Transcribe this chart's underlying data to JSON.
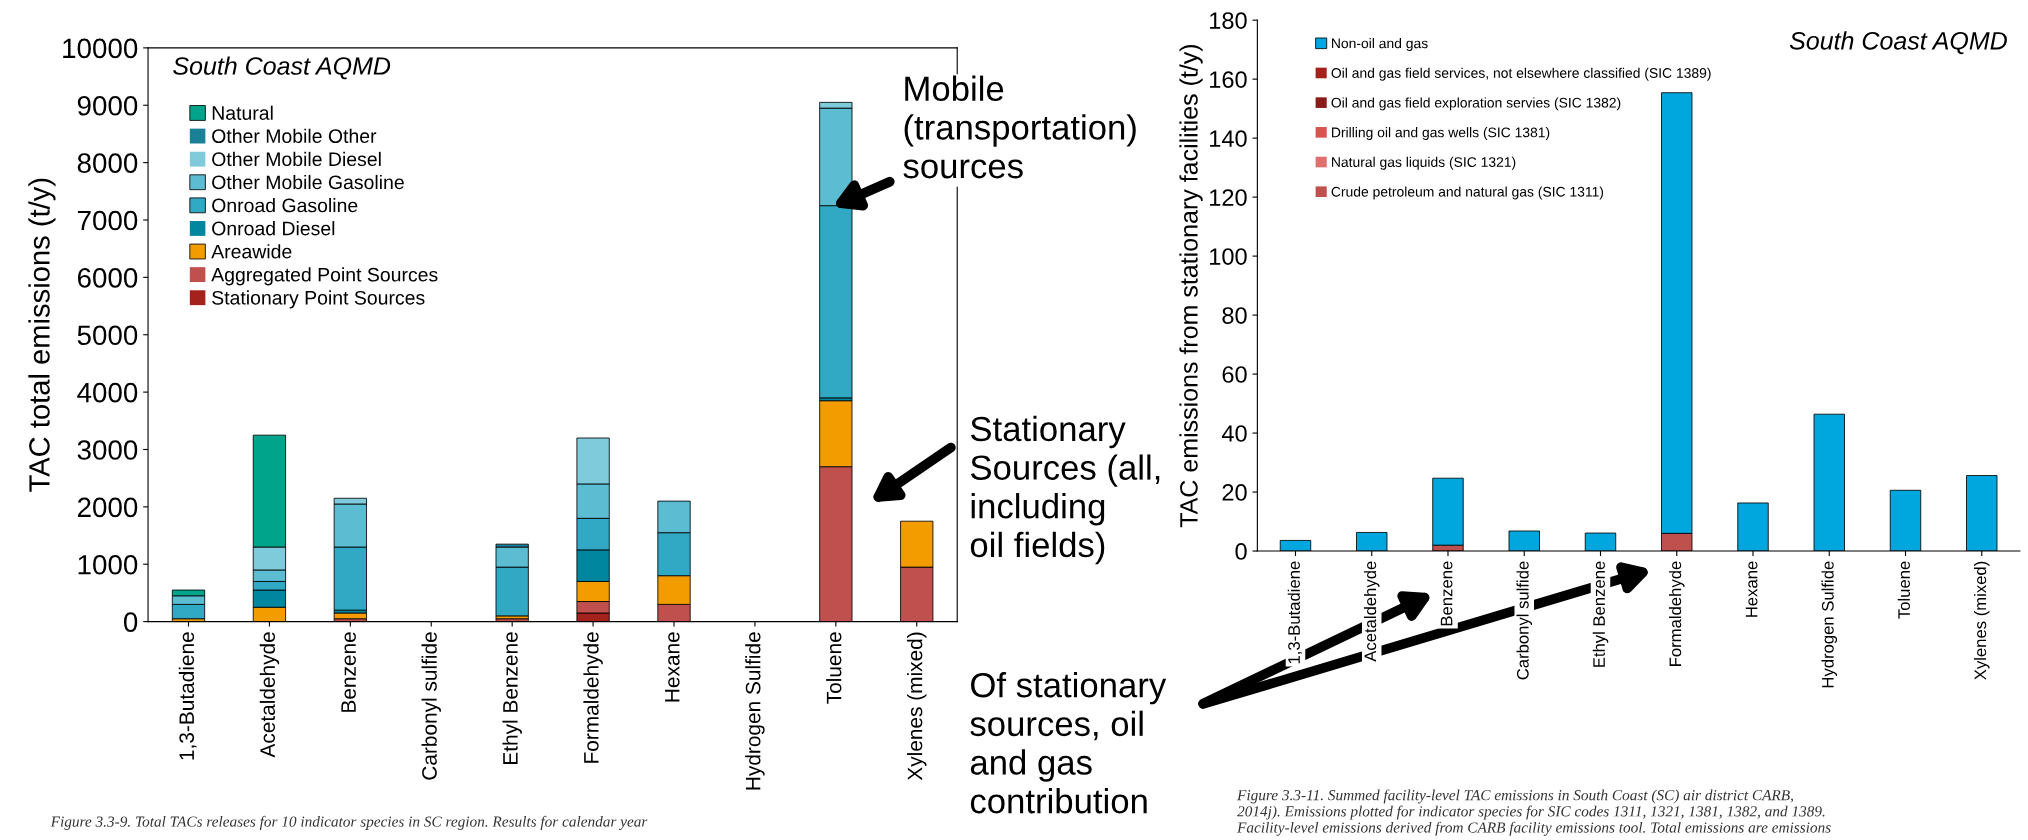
{
  "chart_data": [
    {
      "type": "bar",
      "stacked": true,
      "ylabel": "TAC total emissions (t/y)",
      "categories": [
        "1,3-Butadiene",
        "Acetaldehyde",
        "Benzene",
        "Carbonyl sulfide",
        "Ethyl Benzene",
        "Formaldehyde",
        "Hexane",
        "Hydrogen Sulfide",
        "Toluene",
        "Xylenes (mixed)"
      ],
      "ylim": [
        0,
        10000
      ],
      "yticks": [
        0,
        1000,
        2000,
        3000,
        4000,
        5000,
        6000,
        7000,
        8000,
        9000,
        10000
      ],
      "grid": false,
      "legend": "top left",
      "series": [
        {
          "name": "Stationary Point Sources",
          "color": "#a5221c",
          "values": [
            0,
            0,
            0,
            0,
            0,
            150,
            0,
            0,
            0,
            0
          ]
        },
        {
          "name": "Aggregated Point Sources",
          "color": "#c0504d",
          "values": [
            0,
            0,
            50,
            0,
            50,
            200,
            300,
            0,
            2700,
            950
          ]
        },
        {
          "name": "Areawide",
          "color": "#f39c00",
          "values": [
            50,
            250,
            100,
            0,
            50,
            350,
            500,
            0,
            1150,
            800
          ]
        },
        {
          "name": "Onroad Diesel",
          "color": "#00879f",
          "values": [
            0,
            300,
            50,
            0,
            0,
            550,
            0,
            0,
            50,
            0
          ]
        },
        {
          "name": "Onroad Gasoline",
          "color": "#31a9c4",
          "values": [
            250,
            150,
            1100,
            0,
            850,
            550,
            750,
            0,
            3350,
            0
          ]
        },
        {
          "name": "Other Mobile Gasoline",
          "color": "#5bbcd2",
          "values": [
            150,
            200,
            750,
            0,
            350,
            600,
            550,
            0,
            1700,
            0
          ]
        },
        {
          "name": "Other Mobile Diesel",
          "color": "#7fcbdc",
          "values": [
            0,
            400,
            100,
            0,
            0,
            800,
            0,
            0,
            100,
            0
          ]
        },
        {
          "name": "Other Mobile Other",
          "color": "#1b7f97",
          "values": [
            0,
            0,
            0,
            0,
            50,
            0,
            0,
            0,
            0,
            0
          ]
        },
        {
          "name": "Natural",
          "color": "#00a48a",
          "values": [
            100,
            1950,
            0,
            0,
            0,
            0,
            0,
            0,
            0,
            0
          ]
        }
      ],
      "annotations": [
        "South Coast AQMD",
        "Figure 3.3-9. Total TACs releases for 10 indicator species in SC region. Results for calendar year",
        "Mobile\n(transportation)\nsources",
        "Stationary\nSources (all,\nincluding\noil fields)"
      ]
    },
    {
      "type": "bar",
      "stacked": true,
      "ylabel": "TAC emissions from stationary facilities (t/y)",
      "categories": [
        "1,3-Butadiene",
        "Acetaldehyde",
        "Benzene",
        "Carbonyl sulfide",
        "Ethyl Benzene",
        "Formaldehyde",
        "Hexane",
        "Hydrogen Sulfide",
        "Toluene",
        "Xylenes (mixed)"
      ],
      "ylim": [
        0,
        180
      ],
      "yticks": [
        0,
        20,
        40,
        60,
        80,
        100,
        120,
        140,
        160,
        180
      ],
      "grid": false,
      "legend": "top left",
      "series": [
        {
          "name": "Crude petroleum and natural gas (SIC 1311)",
          "color": "#c0504d",
          "values": [
            0,
            0,
            2,
            0,
            0,
            6,
            0,
            0,
            0,
            0
          ]
        },
        {
          "name": "Natural gas liquids (SIC 1321)",
          "color": "#e07070",
          "values": [
            0,
            0,
            0,
            0,
            0,
            0,
            0,
            0,
            0,
            0
          ]
        },
        {
          "name": "Drilling oil and gas wells (SIC 1381)",
          "color": "#d9534f",
          "values": [
            0,
            0,
            0,
            0,
            0,
            0,
            0,
            0,
            0,
            0
          ]
        },
        {
          "name": "Oil and gas field exploration servies (SIC 1382)",
          "color": "#8b1a1a",
          "values": [
            0,
            0,
            0,
            0,
            0,
            0,
            0,
            0,
            0,
            0
          ]
        },
        {
          "name": "Oil and gas field services, not elsewhere classified (SIC 1389)",
          "color": "#a5221c",
          "values": [
            0,
            0,
            0,
            0,
            0,
            0,
            0,
            0,
            0,
            0
          ]
        },
        {
          "name": "Non-oil and gas",
          "color": "#00a6de",
          "values": [
            3.6,
            6.3,
            22.7,
            6.8,
            6.1,
            149.4,
            16.3,
            46.4,
            20.6,
            25.6
          ]
        }
      ],
      "annotations": [
        "South Coast AQMD",
        "Of stationary\nsources, oil\nand gas\ncontribution",
        "Figure 3.3-11. Summed facility-level TAC emissions in South Coast (SC) air district CARB,\n2014j). Emissions plotted for indicator species for SIC codes 1311, 1321, 1381, 1382, and 1389.\nFacility-level emissions derived from CARB facility emissions tool. Total emissions are emissions"
      ]
    }
  ]
}
